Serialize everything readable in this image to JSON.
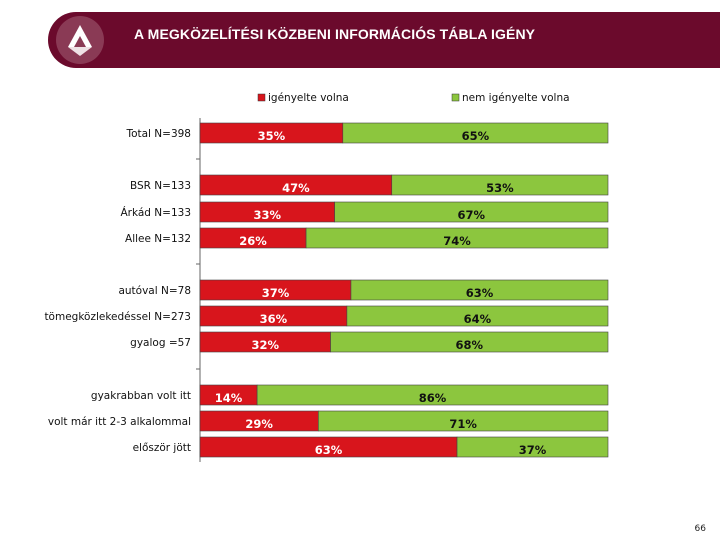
{
  "header": {
    "title": "A MEGKÖZELÍTÉSI KÖZBENI INFORMÁCIÓS TÁBLA IGÉNY"
  },
  "page_number": "66",
  "colors": {
    "series1": "#d8151c",
    "series2": "#8cc63e",
    "header": "#6b0a2c"
  },
  "chart_data": {
    "type": "bar",
    "orientation": "horizontal",
    "stacked": true,
    "percent": true,
    "legend_position": "top",
    "categories": [
      "Total N=398",
      "BSR N=133",
      "Árkád N=133",
      "Allee N=132",
      "autóval N=78",
      "tömegközlekedéssel N=273",
      "gyalog =57",
      "gyakrabban volt itt",
      "volt már itt 2-3 alkalommal",
      "először jött"
    ],
    "groups": [
      [
        0
      ],
      [
        1,
        2,
        3
      ],
      [
        4,
        5,
        6
      ],
      [
        7,
        8,
        9
      ]
    ],
    "series": [
      {
        "name": "igényelte volna",
        "values": [
          35,
          47,
          33,
          26,
          37,
          36,
          32,
          14,
          29,
          63
        ],
        "labels": [
          "35%",
          "47%",
          "33%",
          "26%",
          "37%",
          "36%",
          "32%",
          "14%",
          "29%",
          "63%"
        ]
      },
      {
        "name": "nem igényelte volna",
        "values": [
          65,
          53,
          67,
          74,
          63,
          64,
          68,
          86,
          71,
          37
        ],
        "labels": [
          "65%",
          "53%",
          "67%",
          "74%",
          "63%",
          "64%",
          "68%",
          "86%",
          "71%",
          "37%"
        ]
      }
    ]
  }
}
